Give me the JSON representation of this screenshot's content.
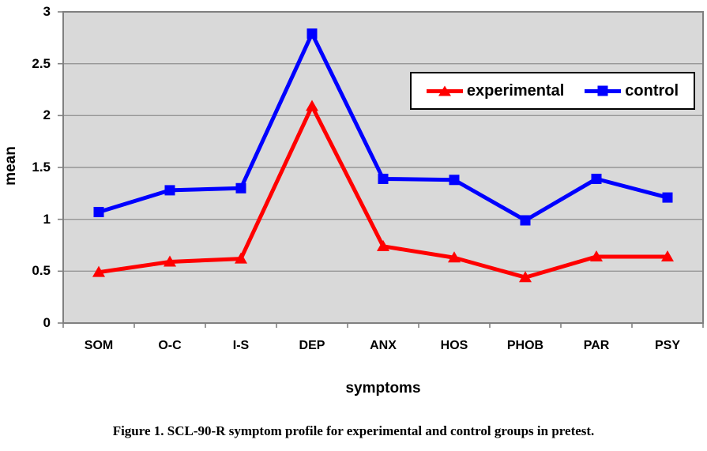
{
  "colors": {
    "experimental": "#ff0000",
    "control": "#0000ff",
    "plot_bg": "#d9d9d9",
    "grid": "#969696",
    "axis": "#808080",
    "legend_border": "#000000",
    "text": "#000000"
  },
  "chart_data": {
    "type": "line",
    "title": "",
    "xlabel": "symptoms",
    "ylabel": "mean",
    "ylim": [
      0,
      3
    ],
    "grid": true,
    "legend_position": "inside-top-right",
    "categories": [
      "SOM",
      "O-C",
      "I-S",
      "DEP",
      "ANX",
      "HOS",
      "PHOB",
      "PAR",
      "PSY"
    ],
    "yticks": [
      {
        "value": 0,
        "label": "0"
      },
      {
        "value": 0.5,
        "label": "0.5"
      },
      {
        "value": 1,
        "label": "1"
      },
      {
        "value": 1.5,
        "label": "1.5"
      },
      {
        "value": 2,
        "label": "2"
      },
      {
        "value": 2.5,
        "label": "2.5"
      },
      {
        "value": 3,
        "label": "3"
      }
    ],
    "series": [
      {
        "name": "experimental",
        "color": "#ff0000",
        "marker": "triangle",
        "values": [
          0.49,
          0.59,
          0.62,
          2.09,
          0.74,
          0.63,
          0.44,
          0.64,
          0.64
        ]
      },
      {
        "name": "control",
        "color": "#0000ff",
        "marker": "square",
        "values": [
          1.07,
          1.28,
          1.3,
          2.79,
          1.39,
          1.38,
          0.99,
          1.39,
          1.21
        ]
      }
    ]
  },
  "legend": {
    "items": [
      {
        "label": "experimental"
      },
      {
        "label": "control"
      }
    ]
  },
  "caption": "Figure 1. SCL-90-R symptom profile for experimental and control groups in pretest."
}
